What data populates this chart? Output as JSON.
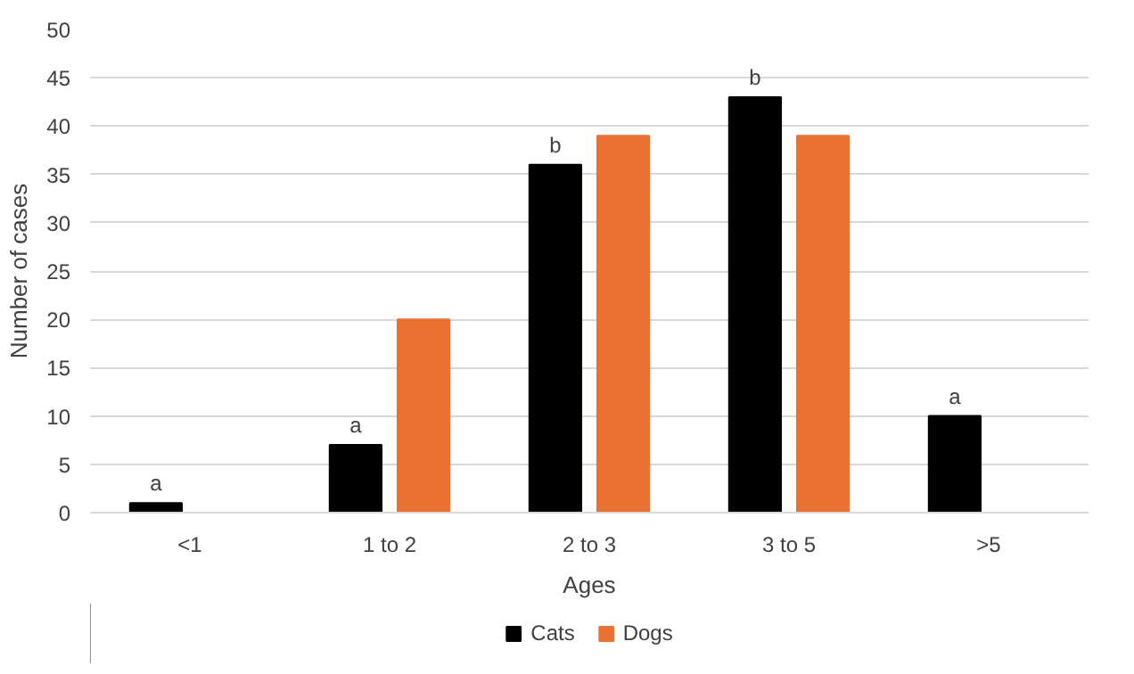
{
  "chart_data": {
    "type": "bar",
    "xlabel": "Ages",
    "ylabel": "Number of cases",
    "categories": [
      "<1",
      "1 to 2",
      "2 to 3",
      "3 to 5",
      ">5"
    ],
    "series": [
      {
        "name": "Cats",
        "color": "#000000",
        "values": [
          1,
          7,
          36,
          43,
          10
        ]
      },
      {
        "name": "Dogs",
        "color": "#e97132",
        "values": [
          null,
          20,
          39,
          39,
          null
        ]
      }
    ],
    "ylim": [
      0,
      50
    ],
    "yticks": [
      0,
      5,
      10,
      15,
      20,
      25,
      30,
      35,
      40,
      45,
      50
    ],
    "grid": "y",
    "legend": "bottom",
    "annotations": [
      {
        "text": "a",
        "x": "<1",
        "y": 1
      },
      {
        "text": "a",
        "x": "1 to 2",
        "y": 7
      },
      {
        "text": "b",
        "x": "2 to 3",
        "y": 36
      },
      {
        "text": "b",
        "x": "3 to 5",
        "y": 43
      },
      {
        "text": "a",
        "x": ">5",
        "y": 10
      }
    ]
  }
}
